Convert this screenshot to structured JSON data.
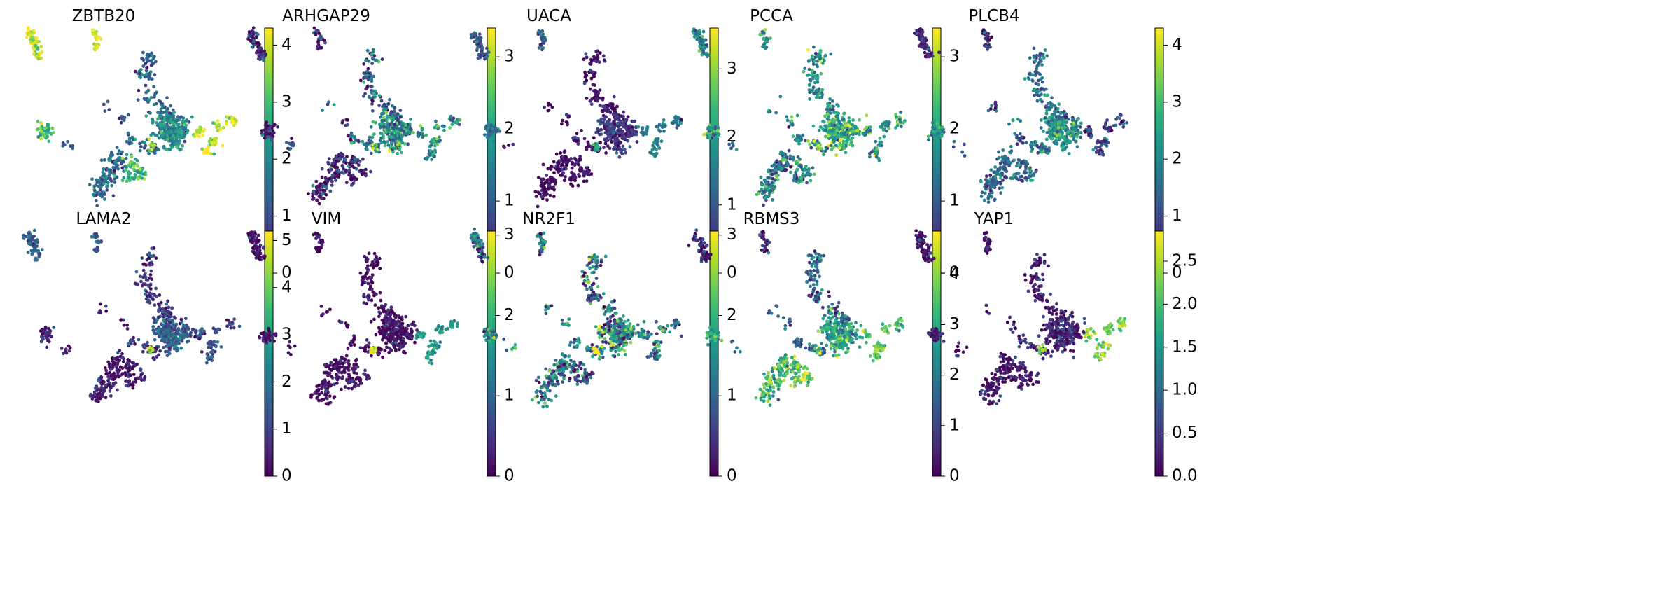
{
  "chart_data": [
    {
      "type": "scatter",
      "title": "ZBTB20",
      "colorbar": {
        "vmin": 0,
        "vmax": 4.3,
        "ticks": [
          "0",
          "1",
          "2",
          "3",
          "4"
        ],
        "tick_values": [
          0,
          1,
          2,
          3,
          4
        ]
      },
      "profile": {
        "base": 1.2,
        "ss": 4.0,
        "right": 4.0,
        "blob": 3.0,
        "lower": 1.5,
        "green_ring": 2.9,
        "core": 2.1,
        "mid": 1.4,
        "spot": 4.0,
        "var": 0.5
      }
    },
    {
      "type": "scatter",
      "title": "ARHGAP29",
      "colorbar": {
        "vmin": 0,
        "vmax": 3.4,
        "ticks": [
          "0",
          "1",
          "2",
          "3"
        ],
        "tick_values": [
          0,
          1,
          2,
          3
        ]
      },
      "profile": {
        "base": 0.6,
        "ss": 0.2,
        "right": 1.7,
        "blob": 0.2,
        "lower": 0.3,
        "green_ring": 0.3,
        "core": 1.8,
        "mid": 1.1,
        "spot": 2.5,
        "var": 0.6
      }
    },
    {
      "type": "scatter",
      "title": "UACA",
      "colorbar": {
        "vmin": 0,
        "vmax": 3.6,
        "ticks": [
          "0",
          "1",
          "2",
          "3"
        ],
        "tick_values": [
          0,
          1,
          2,
          3
        ]
      },
      "profile": {
        "base": 0.1,
        "ss": 1.0,
        "right": 1.5,
        "blob": 1.4,
        "lower": 0.1,
        "green_ring": 0.1,
        "core": 0.6,
        "mid": 0.2,
        "spot": 2.2,
        "var": 0.3
      }
    },
    {
      "type": "scatter",
      "title": "PCCA",
      "colorbar": {
        "vmin": 0,
        "vmax": 3.4,
        "ticks": [
          "0",
          "1",
          "2",
          "3"
        ],
        "tick_values": [
          0,
          1,
          2,
          3
        ]
      },
      "profile": {
        "base": 1.3,
        "ss": 1.6,
        "right": 1.9,
        "blob": 2.0,
        "lower": 1.4,
        "green_ring": 1.6,
        "core": 2.2,
        "mid": 1.6,
        "spot": 2.8,
        "var": 0.6
      }
    },
    {
      "type": "scatter",
      "title": "PLCB4",
      "colorbar": {
        "vmin": 0,
        "vmax": 4.3,
        "ticks": [
          "0",
          "1",
          "2",
          "3",
          "4"
        ],
        "tick_values": [
          0,
          1,
          2,
          3,
          4
        ]
      },
      "profile": {
        "base": 1.2,
        "ss": 0.3,
        "right": 0.8,
        "blob": 2.2,
        "lower": 1.4,
        "green_ring": 1.6,
        "core": 2.2,
        "mid": 1.6,
        "spot": 1.5,
        "var": 0.6
      }
    },
    {
      "type": "scatter",
      "title": "LAMA2",
      "colorbar": {
        "vmin": 0,
        "vmax": 5.2,
        "ticks": [
          "0",
          "1",
          "2",
          "3",
          "4",
          "5"
        ],
        "tick_values": [
          0,
          1,
          2,
          3,
          4,
          5
        ]
      },
      "profile": {
        "base": 0.3,
        "ss": 1.6,
        "right": 1.2,
        "blob": 0.4,
        "lower": 0.3,
        "green_ring": 0.3,
        "core": 1.6,
        "mid": 0.8,
        "spot": 4.5,
        "var": 0.5
      }
    },
    {
      "type": "scatter",
      "title": "VIM",
      "colorbar": {
        "vmin": 0,
        "vmax": 3.05,
        "ticks": [
          "0",
          "1",
          "2",
          "3"
        ],
        "tick_values": [
          0,
          1,
          2,
          3
        ]
      },
      "profile": {
        "base": 0.05,
        "ss": 0.1,
        "right": 1.6,
        "blob": 0.1,
        "lower": 0.05,
        "green_ring": 0.05,
        "core": 0.1,
        "mid": 0.1,
        "spot": 2.8,
        "var": 0.3
      }
    },
    {
      "type": "scatter",
      "title": "NR2F1",
      "colorbar": {
        "vmin": 0,
        "vmax": 3.05,
        "ticks": [
          "0",
          "1",
          "2",
          "3"
        ],
        "tick_values": [
          0,
          1,
          2,
          3
        ]
      },
      "profile": {
        "base": 1.0,
        "ss": 1.0,
        "right": 1.3,
        "blob": 1.3,
        "lower": 1.2,
        "green_ring": 1.0,
        "core": 1.4,
        "mid": 1.2,
        "spot": 2.9,
        "var": 0.7
      }
    },
    {
      "type": "scatter",
      "title": "RBMS3",
      "colorbar": {
        "vmin": 0,
        "vmax": 4.85,
        "ticks": [
          "0",
          "1",
          "2",
          "3",
          "4"
        ],
        "tick_values": [
          0,
          1,
          2,
          3,
          4
        ]
      },
      "profile": {
        "base": 1.4,
        "ss": 0.5,
        "right": 3.6,
        "blob": 2.8,
        "lower": 3.2,
        "green_ring": 3.8,
        "core": 2.8,
        "mid": 1.6,
        "spot": 3.9,
        "var": 0.7
      }
    },
    {
      "type": "scatter",
      "title": "YAP1",
      "colorbar": {
        "vmin": 0,
        "vmax": 2.85,
        "ticks": [
          "0.0",
          "0.5",
          "1.0",
          "1.5",
          "2.0",
          "2.5"
        ],
        "tick_values": [
          0,
          0.5,
          1,
          1.5,
          2,
          2.5
        ]
      },
      "profile": {
        "base": 0.1,
        "ss": 0.1,
        "right": 2.3,
        "blob": 0.1,
        "lower": 0.1,
        "green_ring": 0.1,
        "core": 0.3,
        "mid": 0.2,
        "spot": 2.2,
        "var": 0.3
      }
    }
  ],
  "colormap": [
    "#440154",
    "#482878",
    "#3e4989",
    "#31688e",
    "#26828e",
    "#1f9e89",
    "#35b779",
    "#6ece58",
    "#b5de2b",
    "#fde725"
  ]
}
